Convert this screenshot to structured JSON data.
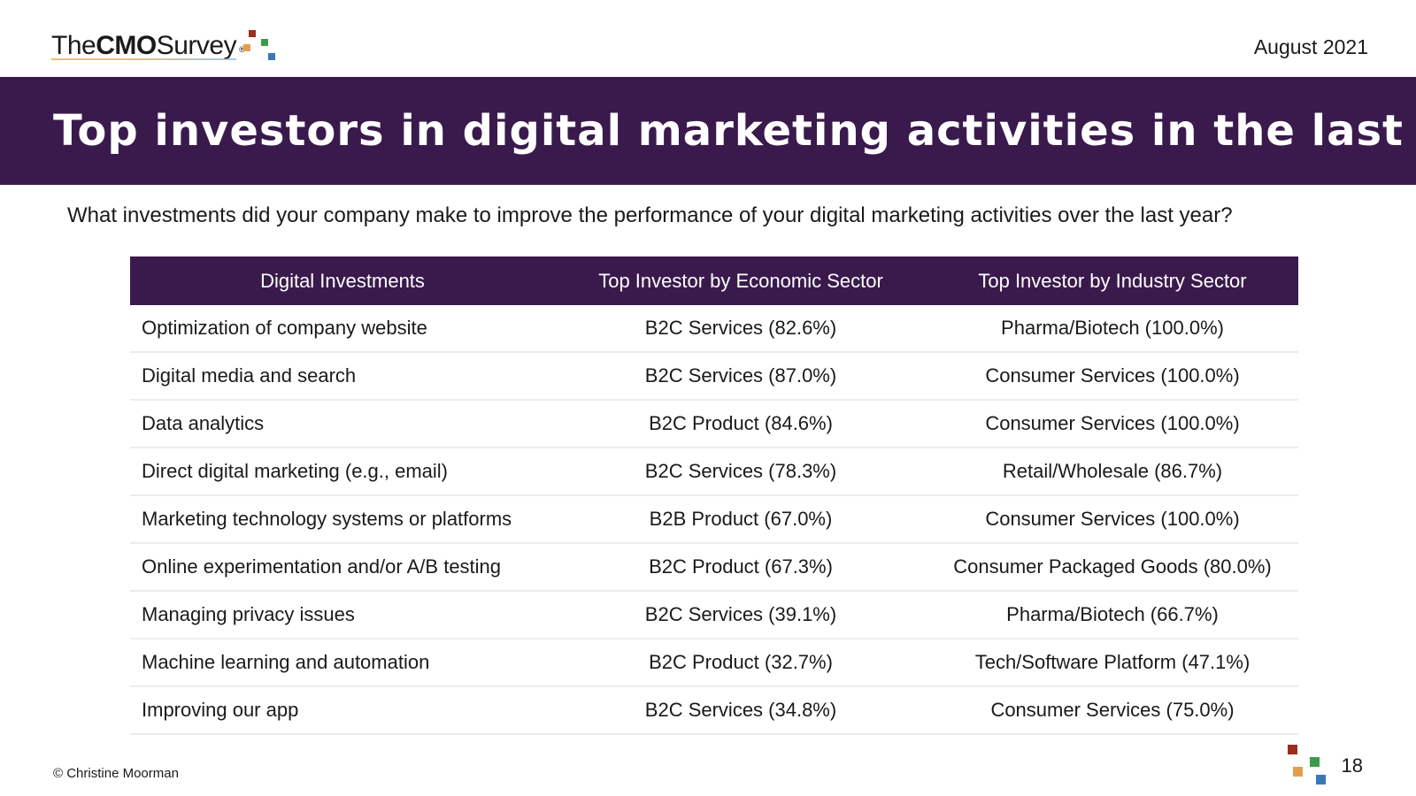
{
  "header": {
    "logo": {
      "the": "The",
      "cmo": "CMO",
      "survey": "Survey",
      "reg": "®"
    },
    "date": "August 2021"
  },
  "banner": {
    "title": "Top investors in digital marketing activities in the last year"
  },
  "question": "What investments did your company make to improve the performance of your digital marketing activities over the last year?",
  "table": {
    "headers": [
      "Digital Investments",
      "Top Investor by Economic Sector",
      "Top Investor by Industry Sector"
    ],
    "rows": [
      [
        "Optimization of company website",
        "B2C Services (82.6%)",
        "Pharma/Biotech (100.0%)"
      ],
      [
        "Digital media and search",
        "B2C Services (87.0%)",
        "Consumer Services (100.0%)"
      ],
      [
        "Data analytics",
        "B2C Product (84.6%)",
        "Consumer Services (100.0%)"
      ],
      [
        "Direct digital marketing (e.g., email)",
        "B2C Services (78.3%)",
        "Retail/Wholesale (86.7%)"
      ],
      [
        "Marketing technology systems or platforms",
        "B2B Product (67.0%)",
        "Consumer Services (100.0%)"
      ],
      [
        "Online experimentation and/or A/B testing",
        "B2C Product (67.3%)",
        "Consumer Packaged Goods (80.0%)"
      ],
      [
        "Managing privacy issues",
        "B2C Services (39.1%)",
        "Pharma/Biotech (66.7%)"
      ],
      [
        "Machine learning and automation",
        "B2C Product (32.7%)",
        "Tech/Software Platform (47.1%)"
      ],
      [
        "Improving our app",
        "B2C Services (34.8%)",
        "Consumer Services (75.0%)"
      ]
    ]
  },
  "footer": {
    "copyright": "© Christine Moorman",
    "page": "18"
  },
  "colors": {
    "brand_purple": "#3a1a4c",
    "sq_red": "#9b2d22",
    "sq_orange": "#e3a04c",
    "sq_green": "#3d9a4a",
    "sq_blue": "#3a77b8"
  }
}
